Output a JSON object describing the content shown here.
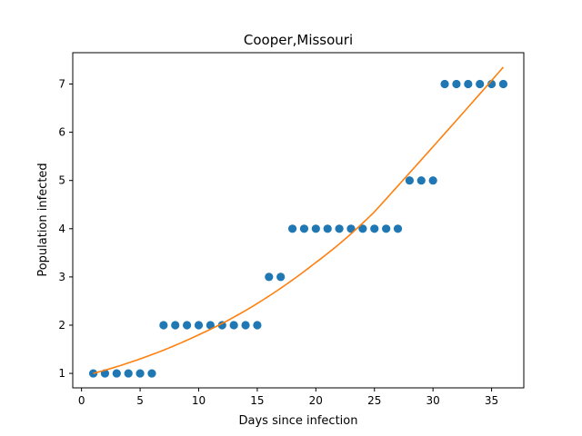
{
  "chart_data": {
    "type": "scatter",
    "title": "Cooper,Missouri",
    "xlabel": "Days since infection",
    "ylabel": "Population infected",
    "xlim": [
      -0.75,
      37.75
    ],
    "ylim": [
      0.7,
      7.65
    ],
    "xticks": [
      0,
      5,
      10,
      15,
      20,
      25,
      30,
      35
    ],
    "yticks": [
      1,
      2,
      3,
      4,
      5,
      6,
      7
    ],
    "grid": false,
    "series": [
      {
        "kind": "points",
        "color": "#1f77b4",
        "x": [
          1,
          2,
          3,
          4,
          5,
          6,
          7,
          8,
          9,
          10,
          11,
          12,
          13,
          14,
          15,
          16,
          17,
          18,
          19,
          20,
          21,
          22,
          23,
          24,
          25,
          26,
          27,
          28,
          29,
          30,
          31,
          32,
          33,
          34,
          35,
          36
        ],
        "y": [
          1,
          1,
          1,
          1,
          1,
          1,
          2,
          2,
          2,
          2,
          2,
          2,
          2,
          2,
          2,
          3,
          3,
          4,
          4,
          4,
          4,
          4,
          4,
          4,
          4,
          4,
          4,
          5,
          5,
          5,
          7,
          7,
          7,
          7,
          7,
          7
        ]
      },
      {
        "kind": "fit-line",
        "color": "#ff7f0e",
        "x": [
          1,
          5,
          10,
          15,
          20,
          25,
          30,
          36
        ],
        "y": [
          1.0,
          1.3,
          1.8,
          2.45,
          3.3,
          4.35,
          5.7,
          7.35
        ]
      }
    ]
  }
}
